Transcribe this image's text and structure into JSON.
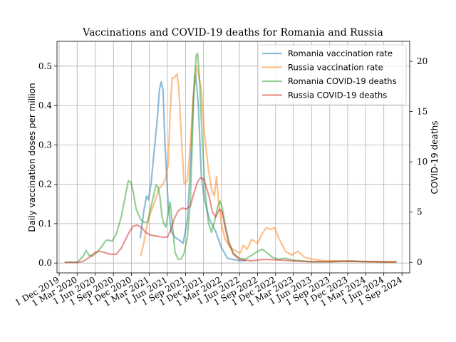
{
  "chart_data": {
    "type": "line",
    "title": "Vaccinations and COVID-19 deaths for Romania and Russia",
    "ylabel": "Daily vaccination doses per million",
    "y2label": "COVID-19 deaths",
    "xlim": [
      "2019-11-20",
      "2024-10-10"
    ],
    "ylim": [
      -0.025,
      0.563
    ],
    "y2lim": [
      -1.05,
      21.99
    ],
    "grid": true,
    "legend_position": "top-right",
    "x_ticks": [
      "2019-12-01",
      "2020-03-01",
      "2020-06-01",
      "2020-09-01",
      "2020-12-01",
      "2021-03-01",
      "2021-06-01",
      "2021-09-01",
      "2021-12-01",
      "2022-03-01",
      "2022-06-01",
      "2022-09-01",
      "2022-12-01",
      "2023-03-01",
      "2023-06-01",
      "2023-09-01",
      "2023-12-01",
      "2024-03-01",
      "2024-06-01",
      "2024-09-01"
    ],
    "x_tick_labels": [
      "1 Dec 2019",
      "1 Mar 2020",
      "1 Jun 2020",
      "1 Sep 2020",
      "1 Dec 2020",
      "1 Mar 2021",
      "1 Jun 2021",
      "1 Sep 2021",
      "1 Dec 2021",
      "1 Mar 2022",
      "1 Jun 2022",
      "1 Sep 2022",
      "1 Dec 2022",
      "1 Mar 2023",
      "1 Jun 2023",
      "1 Sep 2023",
      "1 Dec 2023",
      "1 Mar 2024",
      "1 Jun 2024",
      "1 Sep 2024"
    ],
    "y_ticks": [
      0.0,
      0.1,
      0.2,
      0.3,
      0.4,
      0.5
    ],
    "y_tick_labels": [
      "0.0",
      "0.1",
      "0.2",
      "0.3",
      "0.4",
      "0.5"
    ],
    "y2_ticks": [
      0,
      5,
      10,
      15,
      20
    ],
    "y2_tick_labels": [
      "0",
      "5",
      "10",
      "15",
      "20"
    ],
    "series": [
      {
        "name": "Romania vaccination rate",
        "axis": "left",
        "color": "#1f77b4",
        "points": [
          [
            "2021-01-15",
            0.065
          ],
          [
            "2021-02-01",
            0.13
          ],
          [
            "2021-02-15",
            0.17
          ],
          [
            "2021-02-25",
            0.16
          ],
          [
            "2021-03-10",
            0.2
          ],
          [
            "2021-03-25",
            0.28
          ],
          [
            "2021-04-10",
            0.36
          ],
          [
            "2021-04-22",
            0.44
          ],
          [
            "2021-05-01",
            0.46
          ],
          [
            "2021-05-10",
            0.44
          ],
          [
            "2021-05-20",
            0.3
          ],
          [
            "2021-06-05",
            0.15
          ],
          [
            "2021-06-20",
            0.08
          ],
          [
            "2021-07-10",
            0.065
          ],
          [
            "2021-08-01",
            0.058
          ],
          [
            "2021-08-20",
            0.05
          ],
          [
            "2021-09-10",
            0.11
          ],
          [
            "2021-09-25",
            0.24
          ],
          [
            "2021-10-10",
            0.42
          ],
          [
            "2021-10-22",
            0.48
          ],
          [
            "2021-11-05",
            0.4
          ],
          [
            "2021-11-20",
            0.22
          ],
          [
            "2021-12-05",
            0.16
          ],
          [
            "2022-01-01",
            0.11
          ],
          [
            "2022-02-01",
            0.08
          ],
          [
            "2022-03-01",
            0.04
          ],
          [
            "2022-04-01",
            0.012
          ],
          [
            "2022-06-01",
            0.006
          ],
          [
            "2022-07-01",
            0.006
          ]
        ]
      },
      {
        "name": "Russia vaccination rate",
        "axis": "left",
        "color": "#ff7f0e",
        "points": [
          [
            "2021-01-18",
            0.02
          ],
          [
            "2021-02-01",
            0.05
          ],
          [
            "2021-02-20",
            0.1
          ],
          [
            "2021-03-10",
            0.13
          ],
          [
            "2021-04-01",
            0.16
          ],
          [
            "2021-04-20",
            0.19
          ],
          [
            "2021-05-10",
            0.2
          ],
          [
            "2021-05-25",
            0.22
          ],
          [
            "2021-06-05",
            0.25
          ],
          [
            "2021-06-15",
            0.38
          ],
          [
            "2021-06-25",
            0.47
          ],
          [
            "2021-07-05",
            0.47
          ],
          [
            "2021-07-20",
            0.48
          ],
          [
            "2021-07-28",
            0.45
          ],
          [
            "2021-08-10",
            0.33
          ],
          [
            "2021-08-25",
            0.2
          ],
          [
            "2021-09-10",
            0.21
          ],
          [
            "2021-09-25",
            0.3
          ],
          [
            "2021-10-10",
            0.42
          ],
          [
            "2021-10-25",
            0.5
          ],
          [
            "2021-11-05",
            0.48
          ],
          [
            "2021-11-20",
            0.44
          ],
          [
            "2021-12-05",
            0.33
          ],
          [
            "2021-12-25",
            0.24
          ],
          [
            "2022-01-10",
            0.19
          ],
          [
            "2022-01-25",
            0.17
          ],
          [
            "2022-02-05",
            0.22
          ],
          [
            "2022-02-15",
            0.16
          ],
          [
            "2022-03-01",
            0.1
          ],
          [
            "2022-03-20",
            0.06
          ],
          [
            "2022-04-15",
            0.04
          ],
          [
            "2022-05-15",
            0.03
          ],
          [
            "2022-06-05",
            0.025
          ],
          [
            "2022-06-20",
            0.045
          ],
          [
            "2022-07-10",
            0.035
          ],
          [
            "2022-08-01",
            0.06
          ],
          [
            "2022-09-01",
            0.05
          ],
          [
            "2022-09-25",
            0.075
          ],
          [
            "2022-10-15",
            0.09
          ],
          [
            "2022-11-05",
            0.085
          ],
          [
            "2022-11-25",
            0.09
          ],
          [
            "2022-12-20",
            0.06
          ],
          [
            "2023-01-20",
            0.03
          ],
          [
            "2023-02-20",
            0.02
          ],
          [
            "2023-03-25",
            0.03
          ],
          [
            "2023-04-25",
            0.015
          ],
          [
            "2023-06-01",
            0.01
          ],
          [
            "2023-08-01",
            0.006
          ],
          [
            "2023-11-01",
            0.005
          ],
          [
            "2024-02-01",
            0.004
          ],
          [
            "2024-05-01",
            0.003
          ],
          [
            "2024-08-01",
            0.002
          ]
        ]
      },
      {
        "name": "Romania COVID-19 deaths",
        "axis": "right",
        "color": "#2ca02c",
        "points": [
          [
            "2020-01-01",
            0
          ],
          [
            "2020-03-01",
            0
          ],
          [
            "2020-04-01",
            0.6
          ],
          [
            "2020-04-15",
            1.2
          ],
          [
            "2020-05-01",
            0.7
          ],
          [
            "2020-05-15",
            0.6
          ],
          [
            "2020-06-10",
            1.0
          ],
          [
            "2020-07-05",
            1.6
          ],
          [
            "2020-07-25",
            2.2
          ],
          [
            "2020-08-10",
            2.2
          ],
          [
            "2020-08-25",
            2.1
          ],
          [
            "2020-09-15",
            2.8
          ],
          [
            "2020-10-10",
            4.5
          ],
          [
            "2020-10-30",
            6.5
          ],
          [
            "2020-11-15",
            8.1
          ],
          [
            "2020-11-28",
            8.0
          ],
          [
            "2020-12-10",
            7.0
          ],
          [
            "2020-12-25",
            5.3
          ],
          [
            "2021-01-15",
            4.3
          ],
          [
            "2021-02-01",
            4.0
          ],
          [
            "2021-02-20",
            4.0
          ],
          [
            "2021-03-10",
            5.5
          ],
          [
            "2021-03-25",
            6.8
          ],
          [
            "2021-04-05",
            7.7
          ],
          [
            "2021-04-15",
            7.5
          ],
          [
            "2021-04-25",
            6.4
          ],
          [
            "2021-05-05",
            4.5
          ],
          [
            "2021-05-15",
            3.8
          ],
          [
            "2021-05-25",
            3.5
          ],
          [
            "2021-06-05",
            5.0
          ],
          [
            "2021-06-15",
            6.0
          ],
          [
            "2021-06-25",
            4.0
          ],
          [
            "2021-07-10",
            1.0
          ],
          [
            "2021-07-25",
            0.3
          ],
          [
            "2021-08-10",
            0.35
          ],
          [
            "2021-08-25",
            0.9
          ],
          [
            "2021-09-10",
            2.5
          ],
          [
            "2021-09-25",
            6.0
          ],
          [
            "2021-10-05",
            12.0
          ],
          [
            "2021-10-15",
            18.0
          ],
          [
            "2021-10-25",
            20.6
          ],
          [
            "2021-11-01",
            20.8
          ],
          [
            "2021-11-10",
            18.5
          ],
          [
            "2021-11-25",
            12.0
          ],
          [
            "2021-12-10",
            7.0
          ],
          [
            "2021-12-25",
            4.0
          ],
          [
            "2022-01-10",
            3.0
          ],
          [
            "2022-01-25",
            4.0
          ],
          [
            "2022-02-10",
            5.5
          ],
          [
            "2022-02-22",
            6.1
          ],
          [
            "2022-03-05",
            5.5
          ],
          [
            "2022-03-20",
            3.8
          ],
          [
            "2022-04-10",
            2.0
          ],
          [
            "2022-05-01",
            0.9
          ],
          [
            "2022-06-01",
            0.4
          ],
          [
            "2022-07-01",
            0.3
          ],
          [
            "2022-08-01",
            0.7
          ],
          [
            "2022-09-01",
            1.1
          ],
          [
            "2022-09-25",
            1.3
          ],
          [
            "2022-10-15",
            1.0
          ],
          [
            "2022-11-15",
            0.5
          ],
          [
            "2022-12-15",
            0.3
          ],
          [
            "2023-01-20",
            0.4
          ],
          [
            "2023-03-01",
            0.2
          ],
          [
            "2023-06-01",
            0.08
          ],
          [
            "2023-09-01",
            0.05
          ],
          [
            "2023-11-15",
            0.12
          ],
          [
            "2023-12-20",
            0.15
          ],
          [
            "2024-02-01",
            0.08
          ],
          [
            "2024-05-01",
            0.05
          ],
          [
            "2024-08-01",
            0.04
          ]
        ]
      },
      {
        "name": "Russia COVID-19 deaths",
        "axis": "right",
        "color": "#d62728",
        "points": [
          [
            "2020-01-01",
            0
          ],
          [
            "2020-03-01",
            0
          ],
          [
            "2020-04-01",
            0.1
          ],
          [
            "2020-05-01",
            0.5
          ],
          [
            "2020-06-01",
            1.0
          ],
          [
            "2020-06-20",
            1.1
          ],
          [
            "2020-07-15",
            1.0
          ],
          [
            "2020-08-15",
            0.8
          ],
          [
            "2020-09-15",
            0.8
          ],
          [
            "2020-10-10",
            1.4
          ],
          [
            "2020-10-30",
            2.2
          ],
          [
            "2020-11-20",
            3.0
          ],
          [
            "2020-12-10",
            3.6
          ],
          [
            "2020-12-30",
            3.7
          ],
          [
            "2021-01-20",
            3.5
          ],
          [
            "2021-02-10",
            3.0
          ],
          [
            "2021-03-10",
            2.7
          ],
          [
            "2021-04-10",
            2.6
          ],
          [
            "2021-05-10",
            2.5
          ],
          [
            "2021-06-01",
            2.5
          ],
          [
            "2021-06-20",
            3.3
          ],
          [
            "2021-07-05",
            4.3
          ],
          [
            "2021-07-25",
            5.1
          ],
          [
            "2021-08-15",
            5.4
          ],
          [
            "2021-09-05",
            5.3
          ],
          [
            "2021-09-25",
            5.6
          ],
          [
            "2021-10-15",
            7.0
          ],
          [
            "2021-11-01",
            8.0
          ],
          [
            "2021-11-15",
            8.4
          ],
          [
            "2021-12-01",
            8.3
          ],
          [
            "2021-12-15",
            7.5
          ],
          [
            "2021-12-31",
            6.4
          ],
          [
            "2022-01-15",
            5.0
          ],
          [
            "2022-02-01",
            4.5
          ],
          [
            "2022-02-20",
            5.3
          ],
          [
            "2022-03-05",
            5.0
          ],
          [
            "2022-03-20",
            3.5
          ],
          [
            "2022-04-05",
            2.0
          ],
          [
            "2022-05-01",
            0.8
          ],
          [
            "2022-06-01",
            0.3
          ],
          [
            "2022-08-01",
            0.15
          ],
          [
            "2022-10-01",
            0.3
          ],
          [
            "2022-12-01",
            0.25
          ],
          [
            "2023-03-01",
            0.15
          ],
          [
            "2023-06-01",
            0.05
          ],
          [
            "2023-09-01",
            0.08
          ],
          [
            "2024-01-01",
            0.1
          ],
          [
            "2024-06-01",
            0.05
          ],
          [
            "2024-08-01",
            0.05
          ]
        ]
      }
    ]
  }
}
